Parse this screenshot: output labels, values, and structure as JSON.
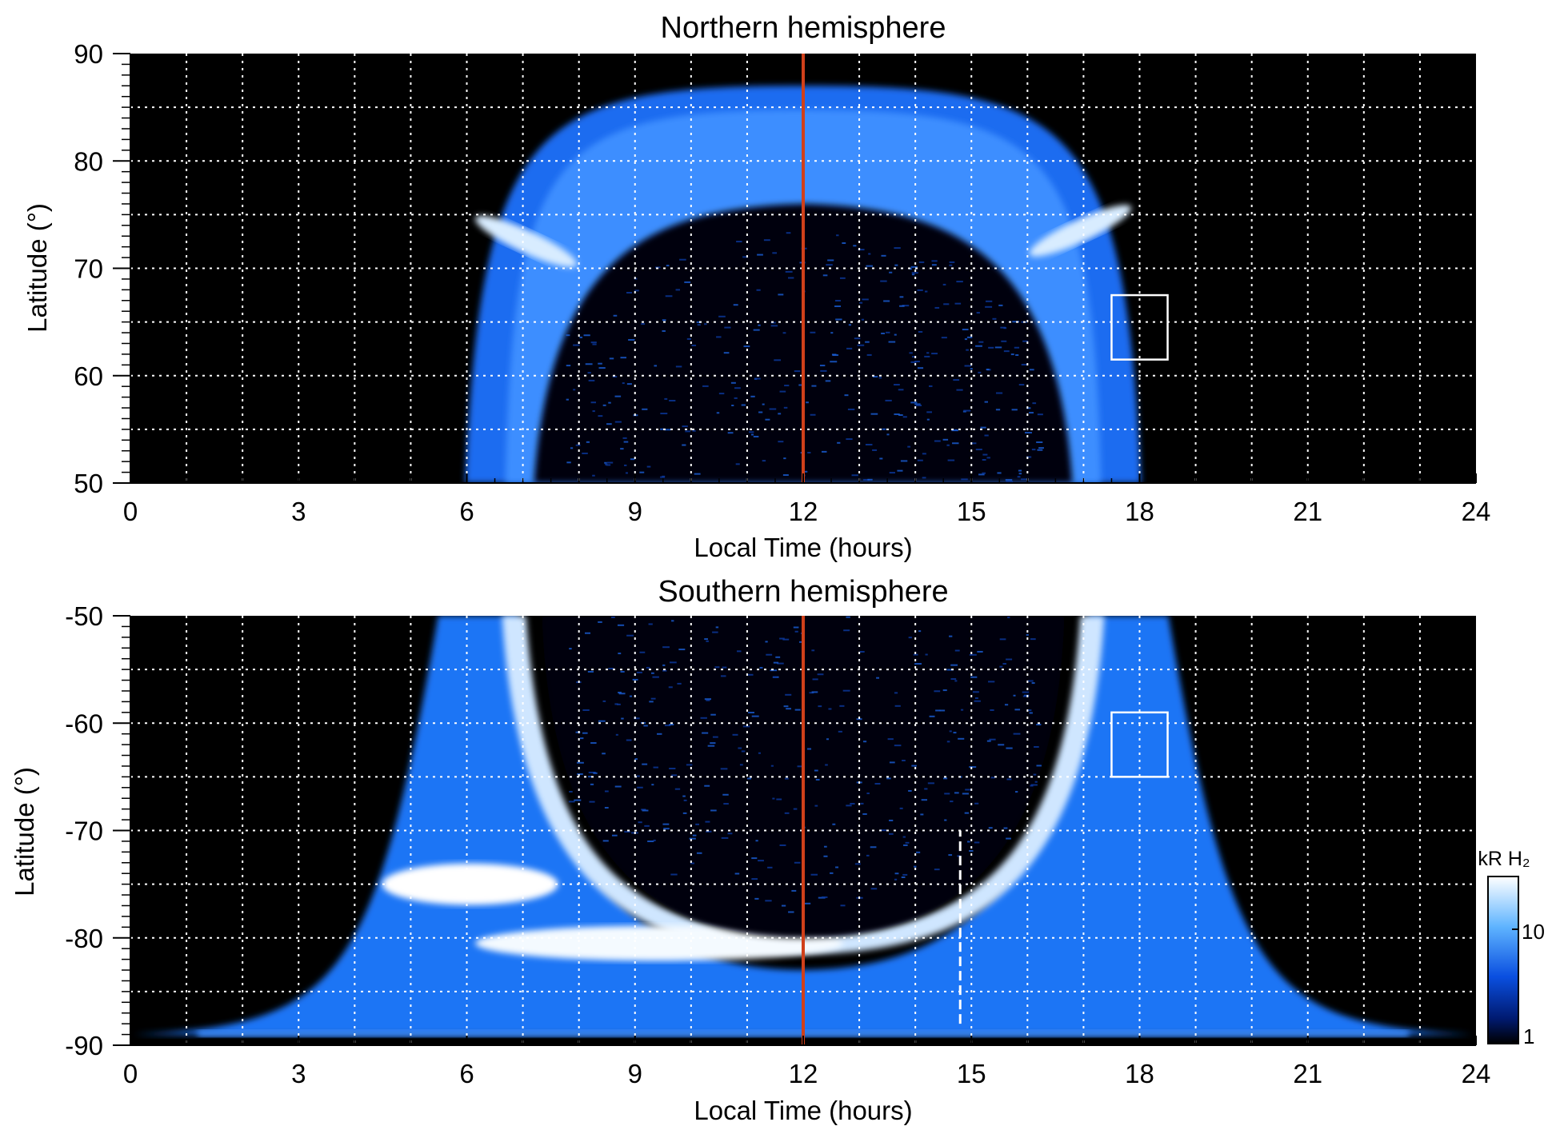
{
  "chart_data": [
    {
      "type": "heatmap",
      "title": "Northern hemisphere",
      "xlabel": "Local Time (hours)",
      "ylabel": "Latitude (°)",
      "xlim": [
        0,
        24
      ],
      "ylim": [
        50,
        90
      ],
      "xticks": [
        "0",
        "3",
        "6",
        "9",
        "12",
        "15",
        "18",
        "21",
        "24"
      ],
      "yticks": [
        "50",
        "60",
        "70",
        "80",
        "90"
      ],
      "grid": true,
      "grid_x_step": 1,
      "grid_y_step": 5,
      "reference_line": {
        "x": 12,
        "color": "#d0401a"
      },
      "box": {
        "x": [
          17.5,
          18.5
        ],
        "y": [
          61.5,
          67.5
        ]
      },
      "aurora": {
        "center_x": 12,
        "half_width_x": 4.8,
        "pole_y": 76,
        "edge_y": 50,
        "outer_half_width_x": 5.6,
        "outer_top_y": 87
      },
      "background": "#000000"
    },
    {
      "type": "heatmap",
      "title": "Southern hemisphere",
      "xlabel": "Local Time (hours)",
      "ylabel": "Latitude (°)",
      "xlim": [
        0,
        24
      ],
      "ylim": [
        -90,
        -50
      ],
      "xticks": [
        "0",
        "3",
        "6",
        "9",
        "12",
        "15",
        "18",
        "21",
        "24"
      ],
      "yticks": [
        "-90",
        "-80",
        "-70",
        "-60",
        "-50"
      ],
      "grid": true,
      "grid_x_step": 1,
      "grid_y_step": 5,
      "reference_line": {
        "x": 12,
        "color": "#d0401a"
      },
      "dashed_line": {
        "x": 14.8,
        "y": [
          -88,
          -70
        ]
      },
      "box": {
        "x": [
          17.5,
          18.5
        ],
        "y": [
          -65,
          -59
        ]
      },
      "aurora": {
        "center_x": 12,
        "half_width_x": 4.8,
        "pole_y": -80,
        "edge_y": -50
      },
      "background": "#000000"
    }
  ],
  "colorbar": {
    "label": "kR H₂",
    "ticks": [
      "10",
      "1"
    ],
    "colors": [
      "#ffffff",
      "#2a8cff",
      "#0030c0",
      "#000000"
    ]
  }
}
